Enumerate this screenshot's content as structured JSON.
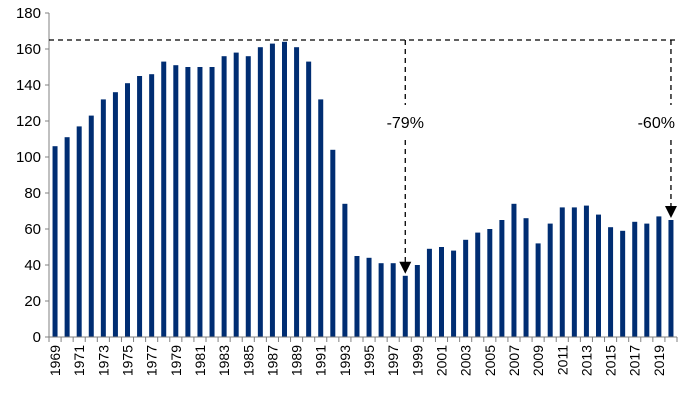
{
  "chart_data": {
    "type": "bar",
    "title": "",
    "xlabel": "",
    "ylabel": "",
    "ylim": [
      0,
      180
    ],
    "yticks": [
      0,
      20,
      40,
      60,
      80,
      100,
      120,
      140,
      160,
      180
    ],
    "grid": false,
    "bar_color": "#002d72",
    "categories": [
      "1969",
      "1970",
      "1971",
      "1972",
      "1973",
      "1974",
      "1975",
      "1976",
      "1977",
      "1978",
      "1979",
      "1980",
      "1981",
      "1982",
      "1983",
      "1984",
      "1985",
      "1986",
      "1987",
      "1988",
      "1989",
      "1990",
      "1991",
      "1992",
      "1993",
      "1994",
      "1995",
      "1996",
      "1997",
      "1998",
      "1999",
      "2000",
      "2001",
      "2002",
      "2003",
      "2004",
      "2005",
      "2006",
      "2007",
      "2008",
      "2009",
      "2010",
      "2011",
      "2012",
      "2013",
      "2014",
      "2015",
      "2016",
      "2017",
      "2018",
      "2019",
      "2020"
    ],
    "values": [
      106,
      111,
      117,
      123,
      132,
      136,
      141,
      145,
      146,
      153,
      151,
      150,
      150,
      150,
      156,
      158,
      156,
      161,
      163,
      164,
      161,
      153,
      132,
      104,
      74,
      45,
      44,
      41,
      41,
      34,
      40,
      49,
      50,
      48,
      54,
      58,
      60,
      65,
      74,
      66,
      52,
      63,
      72,
      72,
      73,
      68,
      61,
      59,
      64,
      63,
      67,
      65
    ],
    "tick_labels": [
      "1969",
      "1971",
      "1973",
      "1975",
      "1977",
      "1979",
      "1981",
      "1983",
      "1985",
      "1987",
      "1989",
      "1991",
      "1993",
      "1995",
      "1997",
      "1999",
      "2001",
      "2003",
      "2005",
      "2007",
      "2009",
      "2011",
      "2013",
      "2015",
      "2017",
      "2019"
    ],
    "reference_line": {
      "value": 165,
      "style": "dashed"
    },
    "annotations": [
      {
        "text": "-79%",
        "x": "1998"
      },
      {
        "text": "-60%",
        "x": "2020"
      }
    ]
  }
}
